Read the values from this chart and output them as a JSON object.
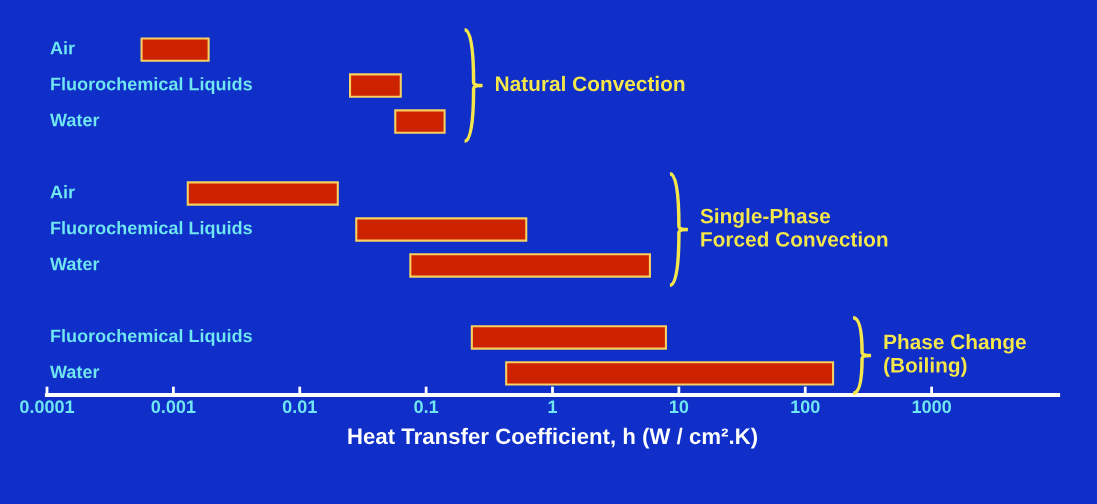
{
  "chart_data": {
    "type": "bar",
    "orientation": "horizontal",
    "log": "x",
    "categories": [
      "Air",
      "Fluorochemical Liquids",
      "Water",
      null,
      "Air",
      "Fluorochemical Liquids",
      "Water",
      null,
      "Fluorochemical Liquids",
      "Water"
    ],
    "base": [
      0.00056,
      0.025,
      0.057,
      null,
      0.0013,
      0.028,
      0.075,
      null,
      0.23,
      0.43
    ],
    "values": [
      0.00134,
      0.038,
      0.083,
      null,
      0.0187,
      0.592,
      5.825,
      null,
      7.67,
      165.57
    ],
    "color": "#cc2200",
    "xlabel": "Heat Transfer Coefficient, h (W / cm².K)",
    "xlim": [
      0.0001,
      10000
    ],
    "xticks": [
      0.0001,
      0.001,
      0.01,
      0.1,
      1,
      10,
      100,
      1000
    ],
    "annotations": [
      "Natural Convection",
      "Single-Phase\nForced Convection",
      "Phase Change\n(Boiling)"
    ],
    "grid": false,
    "legend": false
  }
}
